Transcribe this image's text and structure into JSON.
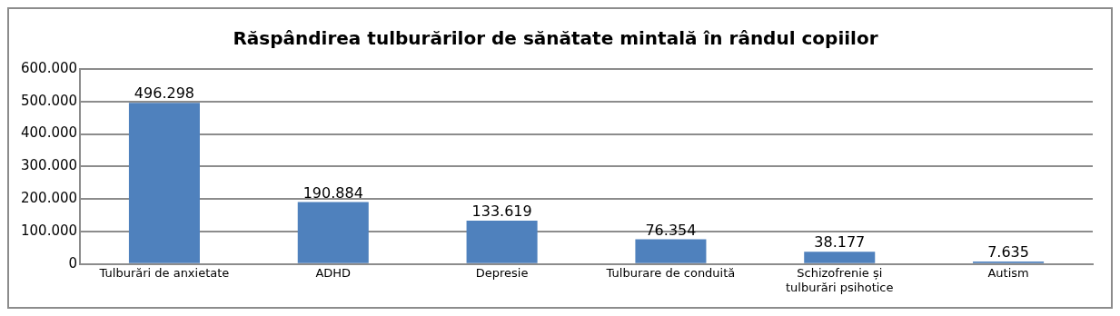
{
  "chart_data": {
    "type": "bar",
    "title": "Răspândirea tulburărilor de sănătate mintală în rândul copiilor",
    "categories": [
      "Tulburări de anxietate",
      "ADHD",
      "Depresie",
      "Tulburare de conduită",
      "Schizofrenie și tulburări psihotice",
      "Autism"
    ],
    "values": [
      496298,
      190884,
      133619,
      76354,
      38177,
      7635
    ],
    "value_labels": [
      "496.298",
      "190.884",
      "133.619",
      "76.354",
      "38.177",
      "7.635"
    ],
    "color": "#4f81bd",
    "ylim": [
      0,
      600000
    ],
    "yticks": [
      {
        "value": 0,
        "label": "0"
      },
      {
        "value": 100000,
        "label": "100.000"
      },
      {
        "value": 200000,
        "label": "200.000"
      },
      {
        "value": 300000,
        "label": "300.000"
      },
      {
        "value": 400000,
        "label": "400.000"
      },
      {
        "value": 500000,
        "label": "500.000"
      },
      {
        "value": 600000,
        "label": "600.000"
      }
    ],
    "grid": "y",
    "legend": false
  }
}
